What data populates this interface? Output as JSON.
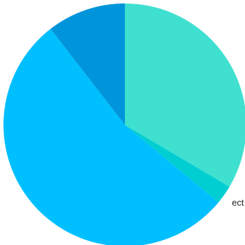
{
  "chart_data": {
    "type": "pie",
    "title": "",
    "start_angle_deg": 0,
    "direction": "clockwise",
    "legend": "none",
    "slices": [
      {
        "label": "",
        "value": 33.5,
        "color": "#40E0D0"
      },
      {
        "label": "",
        "value": 2.5,
        "color": "#00CED1"
      },
      {
        "label": "",
        "value": 53.5,
        "color": "#00BFFF",
        "visible_text": "ect"
      },
      {
        "label": "",
        "value": 10.5,
        "color": "#0095DA"
      }
    ]
  }
}
